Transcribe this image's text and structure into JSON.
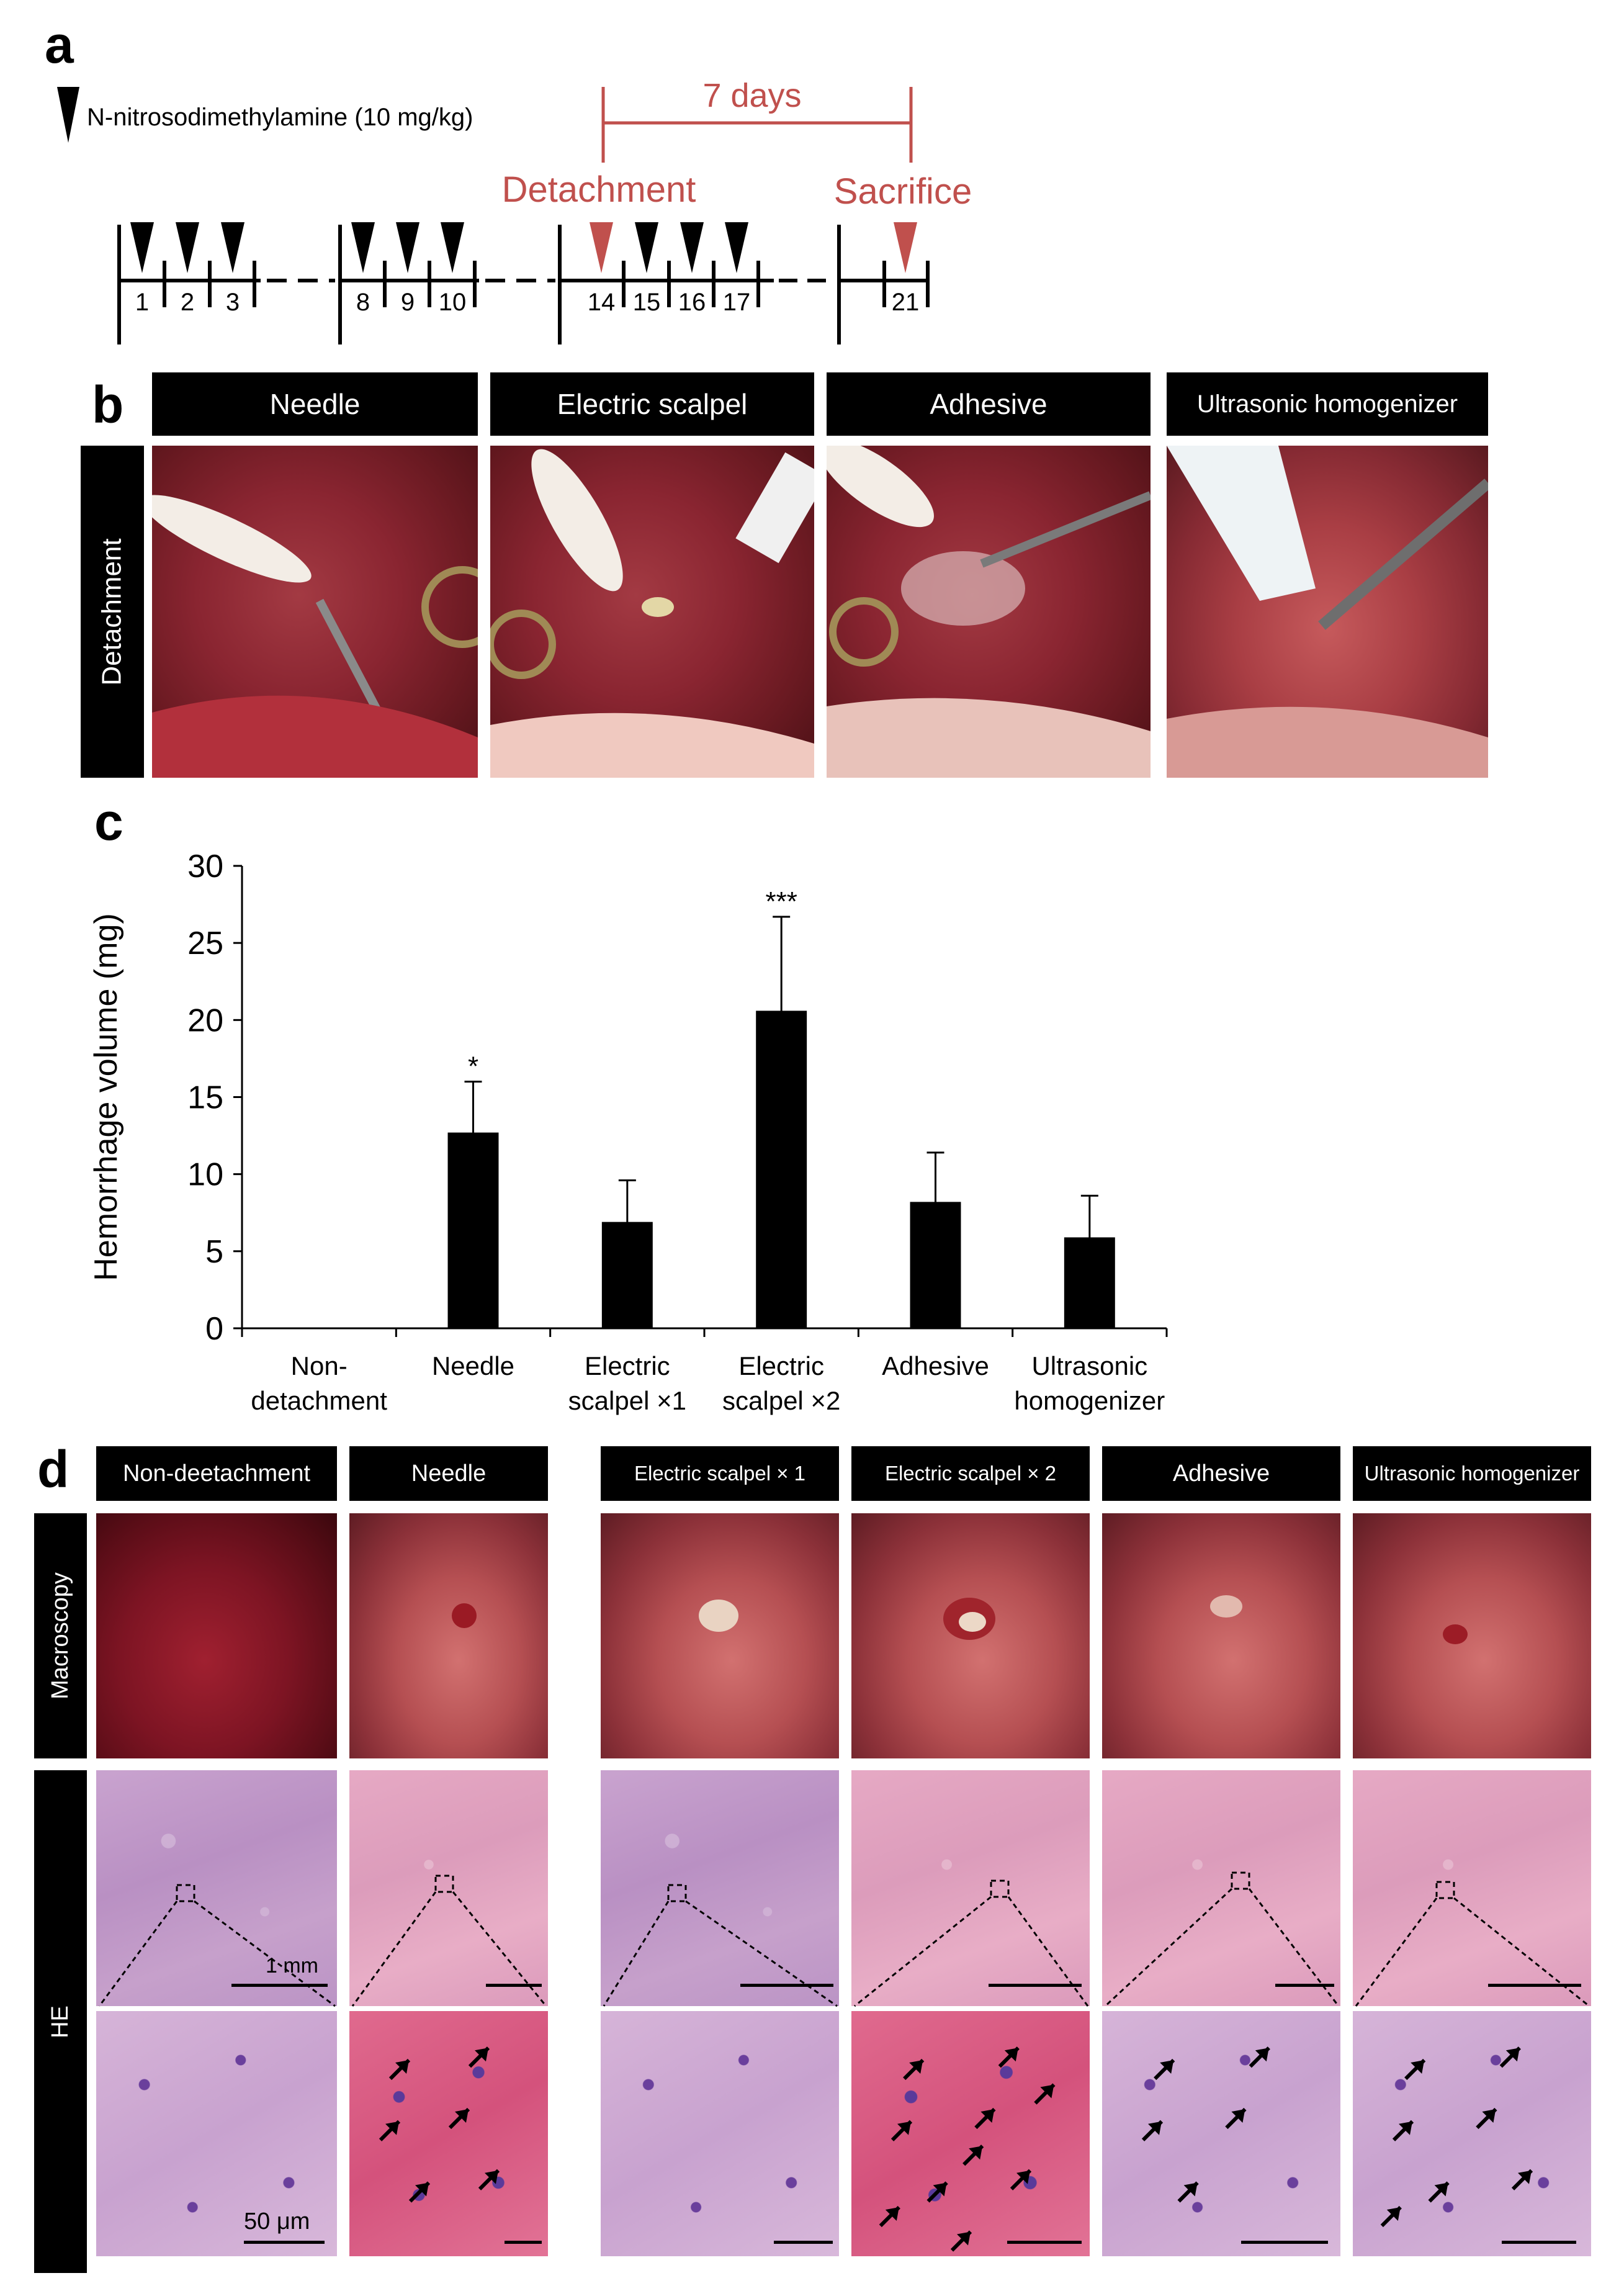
{
  "panel_labels": {
    "a": "a",
    "b": "b",
    "c": "c",
    "d": "d"
  },
  "panel_a": {
    "legend": "N-nitrosodimethylamine (10 mg/kg)",
    "interval_label": "7 days",
    "detachment_label": "Detachment",
    "sacrifice_label": "Sacrifice",
    "days": [
      "1",
      "2",
      "3",
      "8",
      "9",
      "10",
      "14",
      "15",
      "16",
      "17",
      "21"
    ],
    "colors": {
      "drug_marker": "#000000",
      "event_marker": "#c0504d",
      "event_text": "#c0504d"
    }
  },
  "panel_b": {
    "headers": [
      "Needle",
      "Electric scalpel",
      "Adhesive",
      "Ultrasonic homogenizer"
    ],
    "row_label": "Detachment"
  },
  "panel_c": {
    "chart_data": {
      "type": "bar",
      "categories": [
        "Non-\ndetachment",
        "Needle",
        "Electric\nscalpel ×1",
        "Electric\nscalpel ×2",
        "Adhesive",
        "Ultrasonic\nhomogenizer"
      ],
      "values": [
        0,
        12.7,
        6.9,
        20.6,
        8.2,
        5.9
      ],
      "errors": [
        0,
        3.3,
        2.7,
        6.1,
        3.2,
        2.7
      ],
      "significance": [
        "",
        "*",
        "",
        "***",
        "",
        ""
      ],
      "ylabel": "Hemorrhage volume  (mg)",
      "ylim": [
        0,
        30
      ],
      "yticks": [
        "0",
        "5",
        "10",
        "15",
        "20",
        "25",
        "30"
      ],
      "bar_color": "#000000",
      "grid": false
    }
  },
  "panel_d": {
    "headers": [
      "Non-deetachment",
      "Needle",
      "Electric scalpel  × 1",
      "Electric scalpel  × 2",
      "Adhesive",
      "Ultrasonic homogenizer"
    ],
    "row_labels": {
      "macroscopy": "Macroscopy",
      "he": "HE"
    },
    "scale_low": "1 mm",
    "scale_high": "50 μm",
    "arrow_counts": [
      0,
      6,
      0,
      10,
      5,
      7
    ]
  }
}
